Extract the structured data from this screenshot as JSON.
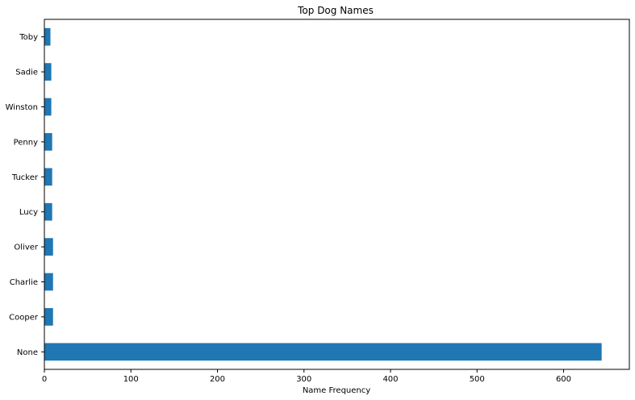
{
  "chart_data": {
    "type": "bar",
    "orientation": "horizontal",
    "title": "Top Dog Names",
    "xlabel": "Name Frequency",
    "ylabel": "",
    "categories": [
      "None",
      "Cooper",
      "Charlie",
      "Oliver",
      "Lucy",
      "Tucker",
      "Penny",
      "Winston",
      "Sadie",
      "Toby"
    ],
    "values": [
      644,
      10,
      10,
      10,
      9,
      9,
      9,
      8,
      8,
      7
    ],
    "xlim": [
      0,
      676
    ],
    "xticks": [
      0,
      100,
      200,
      300,
      400,
      500,
      600
    ],
    "grid": false,
    "legend": "none",
    "bar_color": "#1f77b4"
  }
}
